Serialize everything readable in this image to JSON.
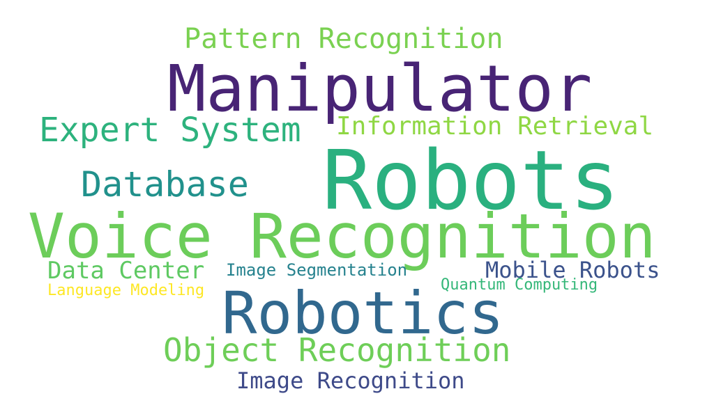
{
  "background_color": "#ffffff",
  "words": {
    "pattern_recognition": {
      "text": "Pattern Recognition",
      "color": "#7ad151"
    },
    "manipulator": {
      "text": "Manipulator",
      "color": "#482475"
    },
    "expert_system": {
      "text": "Expert System",
      "color": "#2db27d"
    },
    "information_retrieval": {
      "text": "Information Retrieval",
      "color": "#8fd744"
    },
    "robots": {
      "text": "Robots",
      "color": "#2ab07f"
    },
    "database": {
      "text": "Database",
      "color": "#21918c"
    },
    "voice_recognition": {
      "text": "Voice Recognition",
      "color": "#6ccd5a"
    },
    "data_center": {
      "text": "Data Center",
      "color": "#5ec962"
    },
    "image_segmentation": {
      "text": "Image Segmentation",
      "color": "#26828e"
    },
    "mobile_robots": {
      "text": "Mobile Robots",
      "color": "#3b528b"
    },
    "quantum_computing": {
      "text": "Quantum Computing",
      "color": "#35b779"
    },
    "language_modeling": {
      "text": "Language Modeling",
      "color": "#fde725"
    },
    "robotics": {
      "text": "Robotics",
      "color": "#31688e"
    },
    "object_recognition": {
      "text": "Object Recognition",
      "color": "#6ece58"
    },
    "image_recognition": {
      "text": "Image Recognition",
      "color": "#3e4a89"
    }
  }
}
